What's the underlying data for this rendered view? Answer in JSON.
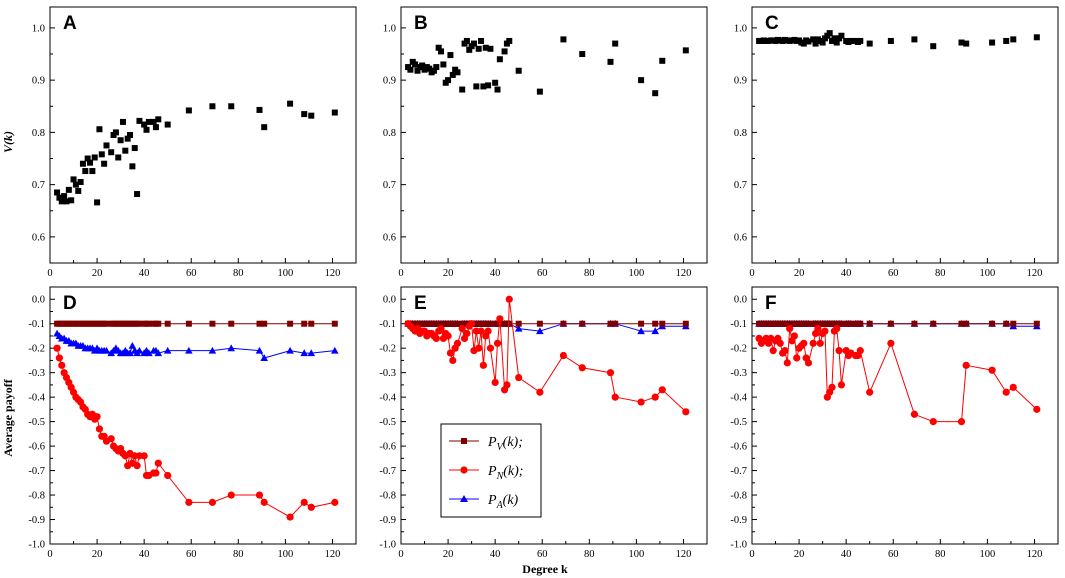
{
  "figure": {
    "x_axis_title": "Degree k",
    "y_axis_title_top": "V(k)",
    "y_axis_title_bottom": "Average payoff",
    "legend": [
      {
        "label": "P",
        "sub": "V",
        "suffix": "(k);",
        "color": "#7f0000",
        "marker": "square"
      },
      {
        "label": "P",
        "sub": "N",
        "suffix": "(k);",
        "color": "#ff0000",
        "marker": "circle"
      },
      {
        "label": "P",
        "sub": "A",
        "suffix": "(k)",
        "color": "#0000ff",
        "marker": "triangle"
      }
    ],
    "colors": {
      "square": "#000000",
      "pv": "#7f0000",
      "pn": "#ff0000",
      "pa": "#0000ff"
    }
  },
  "chart_data": [
    {
      "panel": "A",
      "type": "scatter",
      "xlim": [
        0,
        130
      ],
      "ylim": [
        0.55,
        1.04
      ],
      "xticks": [
        0,
        20,
        40,
        60,
        80,
        100,
        120
      ],
      "yticks": [
        0.6,
        0.7,
        0.8,
        0.9,
        1.0
      ],
      "x": [
        3,
        4,
        5,
        6,
        7,
        8,
        9,
        10,
        11,
        12,
        13,
        14,
        15,
        16,
        17,
        18,
        19,
        20,
        21,
        22,
        23,
        24,
        26,
        27,
        28,
        29,
        30,
        31,
        32,
        33,
        34,
        35,
        36,
        37,
        38,
        40,
        41,
        42,
        44,
        45,
        46,
        50,
        59,
        69,
        77,
        89,
        91,
        102,
        108,
        111,
        121
      ],
      "y": [
        0.685,
        0.675,
        0.668,
        0.678,
        0.668,
        0.69,
        0.67,
        0.71,
        0.7,
        0.688,
        0.705,
        0.74,
        0.726,
        0.75,
        0.742,
        0.726,
        0.752,
        0.666,
        0.806,
        0.758,
        0.74,
        0.775,
        0.762,
        0.795,
        0.8,
        0.752,
        0.785,
        0.82,
        0.765,
        0.788,
        0.795,
        0.735,
        0.77,
        0.682,
        0.822,
        0.815,
        0.805,
        0.82,
        0.82,
        0.81,
        0.825,
        0.815,
        0.842,
        0.85,
        0.85,
        0.843,
        0.81,
        0.855,
        0.835,
        0.832,
        0.838
      ]
    },
    {
      "panel": "B",
      "type": "scatter",
      "xlim": [
        0,
        130
      ],
      "ylim": [
        0.55,
        1.04
      ],
      "xticks": [
        0,
        20,
        40,
        60,
        80,
        100,
        120
      ],
      "yticks": [
        0.6,
        0.7,
        0.8,
        0.9,
        1.0
      ],
      "x": [
        3,
        4,
        5,
        6,
        7,
        8,
        9,
        10,
        11,
        12,
        13,
        14,
        15,
        16,
        17,
        18,
        19,
        20,
        21,
        22,
        23,
        24,
        26,
        27,
        28,
        29,
        30,
        31,
        32,
        33,
        34,
        35,
        36,
        37,
        38,
        40,
        41,
        42,
        44,
        45,
        46,
        50,
        59,
        69,
        77,
        89,
        91,
        102,
        108,
        111,
        121
      ],
      "y": [
        0.925,
        0.92,
        0.935,
        0.93,
        0.918,
        0.925,
        0.928,
        0.92,
        0.925,
        0.922,
        0.915,
        0.918,
        0.925,
        0.962,
        0.955,
        0.93,
        0.895,
        0.9,
        0.948,
        0.91,
        0.92,
        0.915,
        0.882,
        0.97,
        0.975,
        0.958,
        0.965,
        0.97,
        0.888,
        0.96,
        0.975,
        0.888,
        0.962,
        0.89,
        0.96,
        0.895,
        0.882,
        0.94,
        0.955,
        0.97,
        0.975,
        0.918,
        0.878,
        0.978,
        0.95,
        0.935,
        0.97,
        0.9,
        0.875,
        0.937,
        0.957
      ]
    },
    {
      "panel": "C",
      "type": "scatter",
      "xlim": [
        0,
        130
      ],
      "ylim": [
        0.55,
        1.04
      ],
      "xticks": [
        0,
        20,
        40,
        60,
        80,
        100,
        120
      ],
      "yticks": [
        0.6,
        0.7,
        0.8,
        0.9,
        1.0
      ],
      "x": [
        3,
        4,
        5,
        6,
        7,
        8,
        9,
        10,
        11,
        12,
        13,
        14,
        15,
        16,
        17,
        18,
        19,
        20,
        21,
        22,
        23,
        24,
        26,
        27,
        28,
        29,
        30,
        31,
        32,
        33,
        34,
        35,
        36,
        37,
        38,
        40,
        41,
        42,
        44,
        45,
        46,
        50,
        59,
        69,
        77,
        89,
        91,
        102,
        108,
        111,
        121
      ],
      "y": [
        0.975,
        0.975,
        0.976,
        0.975,
        0.975,
        0.976,
        0.976,
        0.975,
        0.977,
        0.976,
        0.975,
        0.977,
        0.976,
        0.975,
        0.976,
        0.977,
        0.975,
        0.976,
        0.972,
        0.97,
        0.976,
        0.974,
        0.978,
        0.97,
        0.978,
        0.975,
        0.972,
        0.98,
        0.985,
        0.99,
        0.975,
        0.98,
        0.972,
        0.98,
        0.985,
        0.975,
        0.973,
        0.975,
        0.975,
        0.973,
        0.975,
        0.97,
        0.975,
        0.978,
        0.965,
        0.972,
        0.97,
        0.972,
        0.975,
        0.978,
        0.982
      ]
    },
    {
      "panel": "D",
      "type": "line",
      "xlim": [
        0,
        130
      ],
      "ylim": [
        -1.0,
        0.05
      ],
      "xticks": [
        0,
        20,
        40,
        60,
        80,
        100,
        120
      ],
      "yticks": [
        0.0,
        -0.1,
        -0.2,
        -0.3,
        -0.4,
        -0.5,
        -0.6,
        -0.7,
        -0.8,
        -0.9,
        -1.0
      ],
      "x": [
        3,
        4,
        5,
        6,
        7,
        8,
        9,
        10,
        11,
        12,
        13,
        14,
        15,
        16,
        17,
        18,
        19,
        20,
        21,
        22,
        23,
        24,
        26,
        27,
        28,
        29,
        30,
        31,
        32,
        33,
        34,
        35,
        36,
        37,
        38,
        40,
        41,
        42,
        44,
        45,
        46,
        50,
        59,
        69,
        77,
        89,
        91,
        102,
        108,
        111,
        121
      ],
      "series": [
        {
          "name": "PV",
          "values": [
            -0.1,
            -0.1,
            -0.1,
            -0.1,
            -0.1,
            -0.1,
            -0.1,
            -0.1,
            -0.1,
            -0.1,
            -0.1,
            -0.1,
            -0.1,
            -0.1,
            -0.1,
            -0.1,
            -0.1,
            -0.1,
            -0.1,
            -0.1,
            -0.1,
            -0.1,
            -0.1,
            -0.1,
            -0.1,
            -0.1,
            -0.1,
            -0.1,
            -0.1,
            -0.1,
            -0.1,
            -0.1,
            -0.1,
            -0.1,
            -0.1,
            -0.1,
            -0.1,
            -0.1,
            -0.1,
            -0.1,
            -0.1,
            -0.1,
            -0.1,
            -0.1,
            -0.1,
            -0.1,
            -0.1,
            -0.1,
            -0.1,
            -0.1,
            -0.1
          ]
        },
        {
          "name": "PN",
          "values": [
            -0.2,
            -0.24,
            -0.27,
            -0.3,
            -0.32,
            -0.34,
            -0.36,
            -0.38,
            -0.4,
            -0.41,
            -0.42,
            -0.44,
            -0.45,
            -0.47,
            -0.48,
            -0.47,
            -0.49,
            -0.48,
            -0.53,
            -0.56,
            -0.56,
            -0.58,
            -0.57,
            -0.6,
            -0.61,
            -0.62,
            -0.61,
            -0.63,
            -0.64,
            -0.68,
            -0.63,
            -0.67,
            -0.64,
            -0.68,
            -0.64,
            -0.64,
            -0.72,
            -0.72,
            -0.71,
            -0.71,
            -0.67,
            -0.72,
            -0.83,
            -0.83,
            -0.8,
            -0.8,
            -0.83,
            -0.89,
            -0.83,
            -0.85,
            -0.83
          ]
        },
        {
          "name": "PA",
          "values": [
            -0.14,
            -0.15,
            -0.16,
            -0.16,
            -0.17,
            -0.17,
            -0.18,
            -0.18,
            -0.18,
            -0.19,
            -0.19,
            -0.19,
            -0.2,
            -0.2,
            -0.2,
            -0.2,
            -0.21,
            -0.2,
            -0.21,
            -0.21,
            -0.21,
            -0.21,
            -0.22,
            -0.21,
            -0.2,
            -0.21,
            -0.22,
            -0.22,
            -0.21,
            -0.22,
            -0.22,
            -0.19,
            -0.21,
            -0.22,
            -0.21,
            -0.22,
            -0.21,
            -0.22,
            -0.21,
            -0.21,
            -0.22,
            -0.21,
            -0.21,
            -0.21,
            -0.2,
            -0.21,
            -0.24,
            -0.21,
            -0.22,
            -0.22,
            -0.21
          ]
        }
      ]
    },
    {
      "panel": "E",
      "type": "line",
      "xlim": [
        0,
        130
      ],
      "ylim": [
        -1.0,
        0.05
      ],
      "xticks": [
        0,
        20,
        40,
        60,
        80,
        100,
        120
      ],
      "yticks": [
        0.0,
        -0.1,
        -0.2,
        -0.3,
        -0.4,
        -0.5,
        -0.6,
        -0.7,
        -0.8,
        -0.9,
        -1.0
      ],
      "x": [
        3,
        4,
        5,
        6,
        7,
        8,
        9,
        10,
        11,
        12,
        13,
        14,
        15,
        16,
        17,
        18,
        19,
        20,
        21,
        22,
        23,
        24,
        26,
        27,
        28,
        29,
        30,
        31,
        32,
        33,
        34,
        35,
        36,
        37,
        38,
        40,
        41,
        42,
        44,
        45,
        46,
        50,
        59,
        69,
        77,
        89,
        91,
        102,
        108,
        111,
        121
      ],
      "series": [
        {
          "name": "PV",
          "values": [
            -0.1,
            -0.1,
            -0.1,
            -0.1,
            -0.1,
            -0.1,
            -0.1,
            -0.1,
            -0.1,
            -0.1,
            -0.1,
            -0.1,
            -0.1,
            -0.1,
            -0.1,
            -0.1,
            -0.1,
            -0.1,
            -0.1,
            -0.1,
            -0.1,
            -0.1,
            -0.1,
            -0.1,
            -0.1,
            -0.1,
            -0.1,
            -0.1,
            -0.1,
            -0.1,
            -0.1,
            -0.1,
            -0.1,
            -0.1,
            -0.1,
            -0.1,
            -0.1,
            -0.1,
            -0.1,
            -0.1,
            -0.1,
            -0.1,
            -0.1,
            -0.1,
            -0.1,
            -0.1,
            -0.1,
            -0.1,
            -0.1,
            -0.1,
            -0.1
          ]
        },
        {
          "name": "PN",
          "values": [
            -0.1,
            -0.11,
            -0.12,
            -0.13,
            -0.12,
            -0.14,
            -0.13,
            -0.13,
            -0.15,
            -0.14,
            -0.14,
            -0.15,
            -0.16,
            -0.13,
            -0.12,
            -0.16,
            -0.14,
            -0.15,
            -0.22,
            -0.25,
            -0.2,
            -0.18,
            -0.12,
            -0.16,
            -0.14,
            -0.11,
            -0.1,
            -0.21,
            -0.13,
            -0.2,
            -0.13,
            -0.27,
            -0.15,
            -0.13,
            -0.2,
            -0.34,
            -0.18,
            -0.08,
            -0.37,
            -0.35,
            0.0,
            -0.32,
            -0.38,
            -0.23,
            -0.28,
            -0.3,
            -0.4,
            -0.42,
            -0.4,
            -0.37,
            -0.46
          ]
        },
        {
          "name": "PA",
          "values": [
            -0.1,
            -0.1,
            -0.1,
            -0.1,
            -0.1,
            -0.1,
            -0.1,
            -0.1,
            -0.1,
            -0.1,
            -0.1,
            -0.1,
            -0.1,
            -0.1,
            -0.1,
            -0.1,
            -0.1,
            -0.1,
            -0.1,
            -0.1,
            -0.1,
            -0.1,
            -0.1,
            -0.1,
            -0.1,
            -0.1,
            -0.1,
            -0.1,
            -0.1,
            -0.1,
            -0.1,
            -0.1,
            -0.1,
            -0.1,
            -0.1,
            -0.1,
            -0.1,
            -0.1,
            -0.1,
            -0.1,
            -0.1,
            -0.12,
            -0.13,
            -0.1,
            -0.1,
            -0.1,
            -0.1,
            -0.13,
            -0.13,
            -0.11,
            -0.11
          ]
        }
      ]
    },
    {
      "panel": "F",
      "type": "line",
      "xlim": [
        0,
        130
      ],
      "ylim": [
        -1.0,
        0.05
      ],
      "xticks": [
        0,
        20,
        40,
        60,
        80,
        100,
        120
      ],
      "yticks": [
        0.0,
        -0.1,
        -0.2,
        -0.3,
        -0.4,
        -0.5,
        -0.6,
        -0.7,
        -0.8,
        -0.9,
        -1.0
      ],
      "x": [
        3,
        4,
        5,
        6,
        7,
        8,
        9,
        10,
        11,
        12,
        13,
        14,
        15,
        16,
        17,
        18,
        19,
        20,
        21,
        22,
        23,
        24,
        26,
        27,
        28,
        29,
        30,
        31,
        32,
        33,
        34,
        35,
        36,
        37,
        38,
        40,
        41,
        42,
        44,
        45,
        46,
        50,
        59,
        69,
        77,
        89,
        91,
        102,
        108,
        111,
        121
      ],
      "series": [
        {
          "name": "PV",
          "values": [
            -0.1,
            -0.1,
            -0.1,
            -0.1,
            -0.1,
            -0.1,
            -0.1,
            -0.1,
            -0.1,
            -0.1,
            -0.1,
            -0.1,
            -0.1,
            -0.1,
            -0.1,
            -0.1,
            -0.1,
            -0.1,
            -0.1,
            -0.1,
            -0.1,
            -0.1,
            -0.1,
            -0.1,
            -0.1,
            -0.1,
            -0.1,
            -0.1,
            -0.1,
            -0.1,
            -0.1,
            -0.1,
            -0.1,
            -0.1,
            -0.1,
            -0.1,
            -0.1,
            -0.1,
            -0.1,
            -0.1,
            -0.1,
            -0.1,
            -0.1,
            -0.1,
            -0.1,
            -0.1,
            -0.1,
            -0.1,
            -0.1,
            -0.1,
            -0.1
          ]
        },
        {
          "name": "PN",
          "values": [
            -0.16,
            -0.18,
            -0.17,
            -0.16,
            -0.18,
            -0.16,
            -0.21,
            -0.17,
            -0.16,
            -0.18,
            -0.22,
            -0.21,
            -0.26,
            -0.12,
            -0.17,
            -0.15,
            -0.24,
            -0.2,
            -0.19,
            -0.18,
            -0.24,
            -0.26,
            -0.18,
            -0.14,
            -0.12,
            -0.18,
            -0.14,
            -0.13,
            -0.4,
            -0.38,
            -0.36,
            -0.13,
            -0.12,
            -0.21,
            -0.35,
            -0.21,
            -0.23,
            -0.22,
            -0.23,
            -0.23,
            -0.21,
            -0.38,
            -0.18,
            -0.47,
            -0.5,
            -0.5,
            -0.27,
            -0.29,
            -0.38,
            -0.36,
            -0.45
          ]
        },
        {
          "name": "PA",
          "values": [
            -0.1,
            -0.1,
            -0.1,
            -0.1,
            -0.1,
            -0.1,
            -0.1,
            -0.1,
            -0.1,
            -0.1,
            -0.1,
            -0.1,
            -0.1,
            -0.1,
            -0.1,
            -0.1,
            -0.1,
            -0.1,
            -0.1,
            -0.1,
            -0.1,
            -0.1,
            -0.1,
            -0.1,
            -0.1,
            -0.1,
            -0.1,
            -0.1,
            -0.1,
            -0.1,
            -0.1,
            -0.1,
            -0.1,
            -0.1,
            -0.1,
            -0.1,
            -0.1,
            -0.1,
            -0.1,
            -0.1,
            -0.1,
            -0.1,
            -0.1,
            -0.1,
            -0.1,
            -0.1,
            -0.1,
            -0.1,
            -0.1,
            -0.11,
            -0.11
          ]
        }
      ]
    }
  ]
}
